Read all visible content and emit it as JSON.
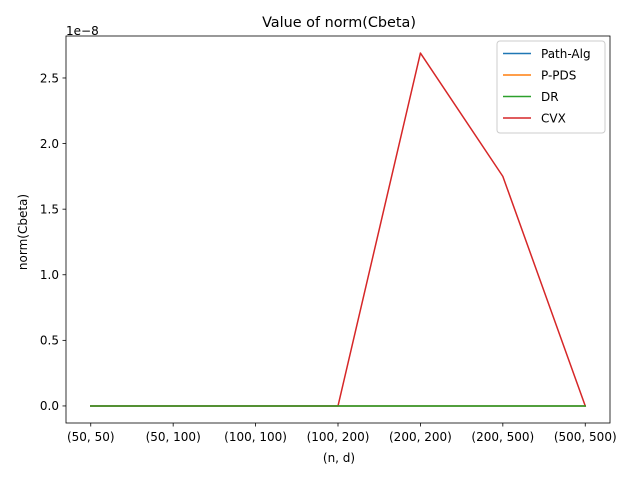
{
  "chart_data": {
    "type": "line",
    "title": "Value of norm(Cbeta)",
    "xlabel": "(n, d)",
    "ylabel": "norm(Cbeta)",
    "y_offset_label": "1e−8",
    "categories": [
      "(50, 50)",
      "(50, 100)",
      "(100, 100)",
      "(100, 200)",
      "(200, 200)",
      "(200, 500)",
      "(500, 500)"
    ],
    "y_scale": 1e-08,
    "ylim": [
      -0.13,
      2.82
    ],
    "yticks": [
      0.0,
      0.5,
      1.0,
      1.5,
      2.0,
      2.5
    ],
    "ytick_labels": [
      "0.0",
      "0.5",
      "1.0",
      "1.5",
      "2.0",
      "2.5"
    ],
    "grid": false,
    "legend_position": "top-right",
    "series": [
      {
        "name": "Path-Alg",
        "color": "#1f77b4",
        "values": [
          0,
          0,
          0,
          0,
          0,
          0,
          0
        ]
      },
      {
        "name": "P-PDS",
        "color": "#ff7f0e",
        "values": [
          0,
          0,
          0,
          0,
          0,
          0,
          0
        ]
      },
      {
        "name": "DR",
        "color": "#2ca02c",
        "values": [
          0,
          0,
          0,
          0,
          0,
          0,
          0
        ]
      },
      {
        "name": "CVX",
        "color": "#d62728",
        "values": [
          0,
          0,
          0,
          0,
          2.69,
          1.75,
          0
        ]
      }
    ],
    "series_draw_order": [
      0,
      1,
      3,
      2
    ]
  }
}
